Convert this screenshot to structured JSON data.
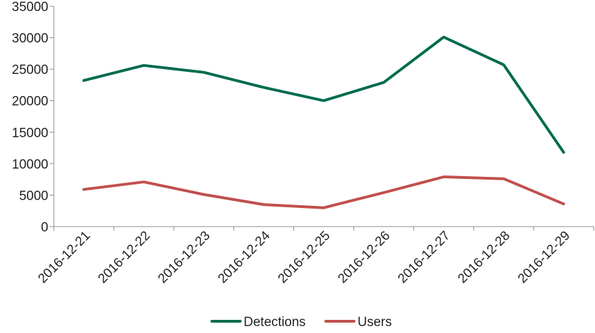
{
  "chart_data": {
    "type": "line",
    "categories": [
      "2016-12-21",
      "2016-12-22",
      "2016-12-23",
      "2016-12-24",
      "2016-12-25",
      "2016-12-26",
      "2016-12-27",
      "2016-12-28",
      "2016-12-29"
    ],
    "series": [
      {
        "name": "Detections",
        "color": "#006b4f",
        "values": [
          23200,
          25600,
          24500,
          22100,
          20000,
          22900,
          30100,
          25700,
          11800
        ]
      },
      {
        "name": "Users",
        "color": "#c0504d",
        "values": [
          5900,
          7100,
          5100,
          3500,
          3000,
          5400,
          7900,
          7600,
          3600
        ]
      }
    ],
    "ylim": [
      0,
      35000
    ],
    "yticks": [
      0,
      5000,
      10000,
      15000,
      20000,
      25000,
      30000,
      35000
    ],
    "title": "",
    "xlabel": "",
    "ylabel": "",
    "grid": false,
    "legend": "bottom"
  }
}
